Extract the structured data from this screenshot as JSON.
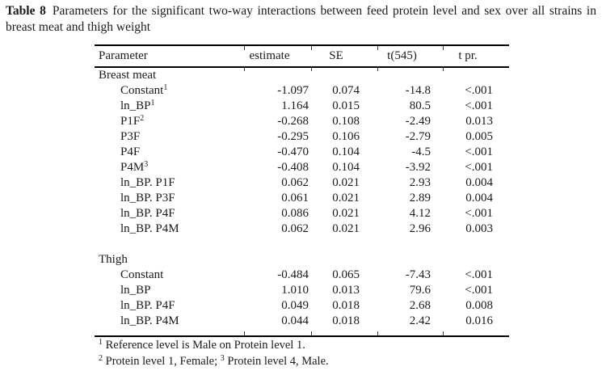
{
  "caption": {
    "label": "Table 8",
    "text": "Parameters for the significant two-way interactions between feed protein level and sex over all strains in breast meat and thigh weight"
  },
  "table": {
    "columns": [
      "Parameter",
      "estimate",
      "SE",
      "t(545)",
      "t pr."
    ],
    "sections": [
      {
        "name": "Breast meat",
        "rows": [
          {
            "param": "Constant",
            "sup": "1",
            "estimate": "-1.097",
            "se": "0.074",
            "t": "-14.8",
            "tpr": "<.001"
          },
          {
            "param": "ln_BP",
            "sup": "1",
            "estimate": "1.164",
            "se": "0.015",
            "t": "80.5",
            "tpr": "<.001"
          },
          {
            "param": "P1F",
            "sup": "2",
            "estimate": "-0.268",
            "se": "0.108",
            "t": "-2.49",
            "tpr": "0.013"
          },
          {
            "param": "P3F",
            "sup": "",
            "estimate": "-0.295",
            "se": "0.106",
            "t": "-2.79",
            "tpr": "0.005"
          },
          {
            "param": "P4F",
            "sup": "",
            "estimate": "-0.470",
            "se": "0.104",
            "t": "-4.5",
            "tpr": "<.001"
          },
          {
            "param": "P4M",
            "sup": "3",
            "estimate": "-0.408",
            "se": "0.104",
            "t": "-3.92",
            "tpr": "<.001"
          },
          {
            "param": "ln_BP. P1F",
            "sup": "",
            "estimate": "0.062",
            "se": "0.021",
            "t": "2.93",
            "tpr": "0.004"
          },
          {
            "param": "ln_BP. P3F",
            "sup": "",
            "estimate": "0.061",
            "se": "0.021",
            "t": "2.89",
            "tpr": "0.004"
          },
          {
            "param": "ln_BP. P4F",
            "sup": "",
            "estimate": "0.086",
            "se": "0.021",
            "t": "4.12",
            "tpr": "<.001"
          },
          {
            "param": "ln_BP. P4M",
            "sup": "",
            "estimate": "0.062",
            "se": "0.021",
            "t": "2.96",
            "tpr": "0.003"
          }
        ]
      },
      {
        "name": "Thigh",
        "rows": [
          {
            "param": "Constant",
            "sup": "",
            "estimate": "-0.484",
            "se": "0.065",
            "t": "-7.43",
            "tpr": "<.001"
          },
          {
            "param": "ln_BP",
            "sup": "",
            "estimate": "1.010",
            "se": "0.013",
            "t": "79.6",
            "tpr": "<.001"
          },
          {
            "param": "ln_BP. P4F",
            "sup": "",
            "estimate": "0.049",
            "se": "0.018",
            "t": "2.68",
            "tpr": "0.008"
          },
          {
            "param": "ln_BP. P4M",
            "sup": "",
            "estimate": "0.044",
            "se": "0.018",
            "t": "2.42",
            "tpr": "0.016"
          }
        ]
      }
    ]
  },
  "footnotes": [
    [
      {
        "sup": "1",
        "text": " Reference level is Male on Protein level 1."
      }
    ],
    [
      {
        "sup": "2",
        "text": " Protein level 1, Female; "
      },
      {
        "sup": "3",
        "text": " Protein level 4, Male."
      }
    ]
  ]
}
